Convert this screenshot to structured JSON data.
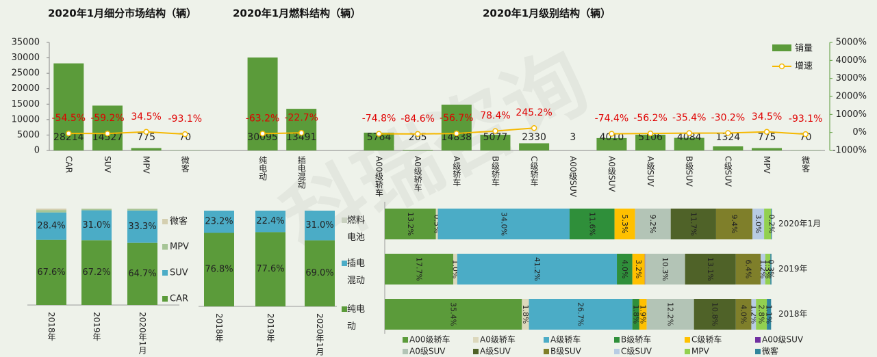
{
  "chart_data": [
    {
      "type": "bar",
      "titles": [
        "2020年1月细分市场结构（辆）",
        "2020年1月燃料结构（辆）",
        "2020年1月级别结构（辆）"
      ],
      "watermark": "科瑞咨询",
      "categories": [
        "CAR",
        "SUV",
        "MPV",
        "微客",
        null,
        "纯电动",
        "插电混动",
        null,
        "A00级轿车",
        "A0级轿车",
        "A级轿车",
        "B级轿车",
        "C级轿车",
        "A00级SUV",
        "A0级SUV",
        "A级SUV",
        "B级SUV",
        "C级SUV",
        "MPV",
        "微客"
      ],
      "series": [
        {
          "name": "销量",
          "color": "#5b9b3a",
          "values": [
            28214,
            14527,
            775,
            70,
            null,
            30095,
            13491,
            null,
            5764,
            205,
            14838,
            5077,
            2330,
            3,
            4010,
            5106,
            4084,
            1324,
            775,
            70
          ]
        },
        {
          "name": "增速",
          "color": "#f5b800",
          "axis": "y2",
          "values": [
            -54.5,
            -59.2,
            34.5,
            -93.1,
            null,
            -63.2,
            -22.7,
            null,
            -74.8,
            -84.6,
            -56.7,
            78.4,
            245.2,
            null,
            -74.4,
            -56.2,
            -35.4,
            -30.2,
            34.5,
            -93.1
          ],
          "value_labels": [
            "-54.5%",
            "-59.2%",
            "34.5%",
            "-93.1%",
            null,
            "-63.2%",
            "-22.7%",
            null,
            "-74.8%",
            "-84.6%",
            "-56.7%",
            "78.4%",
            "245.2%",
            null,
            "-74.4%",
            "-56.2%",
            "-35.4%",
            "-30.2%",
            "34.5%",
            "-93.1%"
          ]
        }
      ],
      "ylim": [
        0,
        35000
      ],
      "yticks": [
        0,
        5000,
        10000,
        15000,
        20000,
        25000,
        30000,
        35000
      ],
      "y2lim": [
        -1000,
        5000
      ],
      "y2ticks": [
        {
          "value": -1000,
          "label": "-1000%"
        },
        {
          "value": 0,
          "label": "0%"
        },
        {
          "value": 1000,
          "label": "1000%"
        },
        {
          "value": 2000,
          "label": "2000%"
        },
        {
          "value": 3000,
          "label": "3000%"
        },
        {
          "value": 4000,
          "label": "4000%"
        },
        {
          "value": 5000,
          "label": "5000%"
        }
      ],
      "legend": "top-right"
    },
    {
      "type": "stacked_column",
      "categories": [
        "2018年",
        "2019年",
        "2020年1月"
      ],
      "ylim": [
        0,
        100
      ],
      "series": [
        {
          "name": "CAR",
          "color": "#5b9b3a",
          "values": [
            67.6,
            67.2,
            64.7
          ],
          "value_labels": [
            "67.6%",
            "67.2%",
            "64.7%"
          ]
        },
        {
          "name": "SUV",
          "color": "#4bacc6",
          "values": [
            28.4,
            31.0,
            33.3
          ],
          "value_labels": [
            "28.4%",
            "31.0%",
            "33.3%"
          ]
        },
        {
          "name": "MPV",
          "color": "#a6c596",
          "values": [
            2.5,
            1.5,
            1.8
          ],
          "value_labels": [
            null,
            null,
            null
          ]
        },
        {
          "name": "微客",
          "color": "#d4cfb0",
          "values": [
            1.5,
            0.3,
            0.2
          ],
          "value_labels": [
            null,
            null,
            null
          ]
        }
      ],
      "legend": "right"
    },
    {
      "type": "stacked_column",
      "categories": [
        "2018年",
        "2019年",
        "2020年1月"
      ],
      "ylim": [
        0,
        100
      ],
      "series": [
        {
          "name": "纯电动",
          "color": "#5b9b3a",
          "values": [
            76.8,
            77.6,
            69.0
          ],
          "value_labels": [
            "76.8%",
            "77.6%",
            "69.0%"
          ]
        },
        {
          "name": "插电混动",
          "color": "#4bacc6",
          "values": [
            23.2,
            22.4,
            31.0
          ],
          "value_labels": [
            "23.2%",
            "22.4%",
            "31.0%"
          ]
        },
        {
          "name": "燃料电池",
          "color": "#c9d1c0",
          "values": [
            0,
            0,
            0
          ],
          "value_labels": [
            null,
            null,
            null
          ]
        }
      ],
      "legend": "right"
    },
    {
      "type": "stacked_barh",
      "categories": [
        "2020年1月",
        "2019年",
        "2018年"
      ],
      "xlim": [
        0,
        100
      ],
      "series": [
        {
          "name": "A00级轿车",
          "color": "#5b9b3a",
          "values": [
            13.2,
            17.7,
            35.4
          ],
          "value_labels": [
            "13.2%",
            "17.7%",
            "35.4%"
          ]
        },
        {
          "name": "A0级轿车",
          "color": "#dcd8bc",
          "values": [
            0.5,
            1.0,
            1.8
          ],
          "value_labels": [
            "0.5%",
            "1.0%",
            "1.8%"
          ]
        },
        {
          "name": "A级轿车",
          "color": "#4bacc6",
          "values": [
            34.0,
            41.2,
            26.7
          ],
          "value_labels": [
            "34.0%",
            "41.2%",
            "26.7%"
          ]
        },
        {
          "name": "B级轿车",
          "color": "#2f8f3a",
          "values": [
            11.6,
            4.0,
            1.8
          ],
          "value_labels": [
            "11.6%",
            "4.0%",
            "1.8%"
          ]
        },
        {
          "name": "C级轿车",
          "color": "#ffc000",
          "values": [
            5.3,
            3.2,
            1.9
          ],
          "value_labels": [
            "5.3%",
            "3.2%",
            "1.9%"
          ]
        },
        {
          "name": "A00级SUV",
          "color": "#7030a0",
          "values": [
            0,
            0.1,
            0
          ],
          "value_labels": [
            null,
            null,
            null
          ]
        },
        {
          "name": "A0级SUV",
          "color": "#b3c4b6",
          "values": [
            9.2,
            10.3,
            12.2
          ],
          "value_labels": [
            "9.2%",
            "10.3%",
            "12.2%"
          ]
        },
        {
          "name": "A级SUV",
          "color": "#4f6228",
          "values": [
            11.7,
            13.1,
            10.8
          ],
          "value_labels": [
            "11.7%",
            "13.1%",
            "10.8%"
          ]
        },
        {
          "name": "B级SUV",
          "color": "#7f7f2a",
          "values": [
            9.4,
            6.4,
            4.0
          ],
          "value_labels": [
            "9.4%",
            "6.4%",
            "4.0%"
          ]
        },
        {
          "name": "C级SUV",
          "color": "#b8cce4",
          "values": [
            3.0,
            1.2,
            1.2
          ],
          "value_labels": [
            "3.0%",
            "1.2%",
            "1.2%"
          ]
        },
        {
          "name": "MPV",
          "color": "#92d050",
          "values": [
            1.8,
            1.3,
            2.8
          ],
          "value_labels": [
            null,
            "1.3%",
            "2.8%"
          ]
        },
        {
          "name": "微客",
          "color": "#31859c",
          "values": [
            0.2,
            0.3,
            1.1
          ],
          "value_labels": [
            "0.2%",
            "0.3%",
            "1.1%"
          ]
        }
      ],
      "legend": "bottom"
    }
  ]
}
